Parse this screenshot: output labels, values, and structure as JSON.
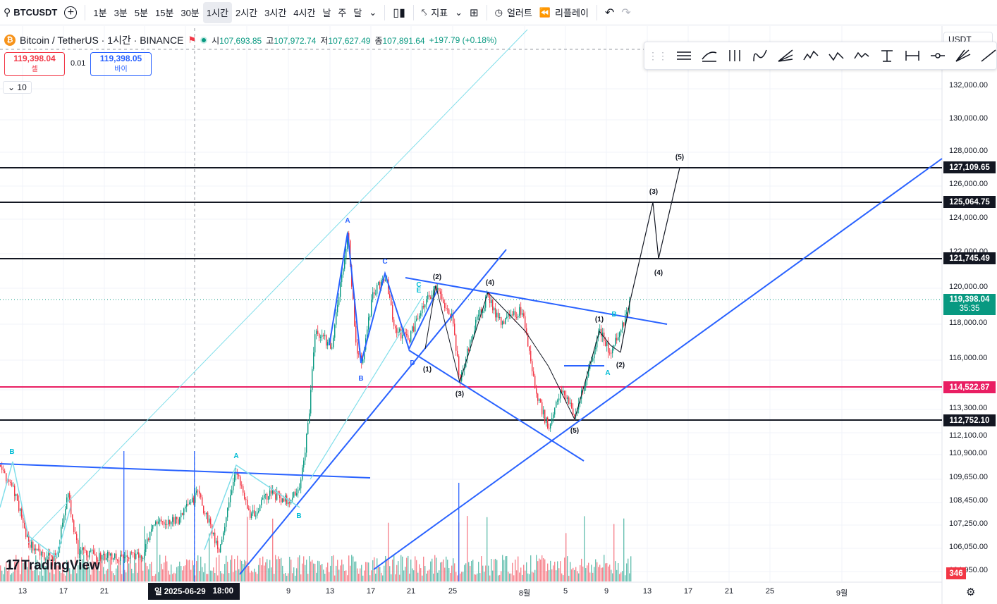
{
  "toolbar": {
    "symbol": "BTCUSDT",
    "intervals": [
      "1분",
      "3분",
      "5분",
      "15분",
      "30분",
      "1시간",
      "2시간",
      "3시간",
      "4시간",
      "날",
      "주",
      "달"
    ],
    "active_interval": "1시간",
    "indicators_label": "지표",
    "alert_label": "얼러트",
    "replay_label": "리플레이"
  },
  "legend": {
    "name": "Bitcoin / TetherUS · 1시간 · BINANCE",
    "open_label": "시",
    "open": "107,693.85",
    "high_label": "고",
    "high": "107,972.74",
    "low_label": "저",
    "low": "107,627.49",
    "close_label": "종",
    "close": "107,891.64",
    "change": "+197.79 (+0.18%)"
  },
  "trade": {
    "sell_price": "119,398.04",
    "sell_label": "셀",
    "buy_price": "119,398.05",
    "buy_label": "바이",
    "qty": "0.01"
  },
  "indicator_count": "10",
  "currency": "USDT",
  "price_axis": [
    "132,000.00",
    "130,000.00",
    "128,000.00",
    "126,000.00",
    "124,000.00",
    "122,000.00",
    "120,000.00",
    "118,000.00",
    "116,000.00",
    "113,300.00",
    "112,100.00",
    "110,900.00",
    "109,650.00",
    "108,450.00",
    "107,250.00",
    "106,050.00",
    "104,950.00"
  ],
  "price_labels": {
    "level1": "127,109.65",
    "level2": "125,064.75",
    "level3": "121,745.49",
    "current": "119,398.04",
    "countdown": "35:35",
    "pink": "114,522.87",
    "level4": "112,752.10",
    "volume": "346"
  },
  "date_axis": [
    "13",
    "17",
    "21",
    "25",
    "5",
    "9",
    "13",
    "17",
    "21",
    "25",
    "8월",
    "5",
    "9",
    "13",
    "17",
    "21",
    "25",
    "9월"
  ],
  "crosshair_date": "일 2025-06-29",
  "crosshair_time": "18:00",
  "logo_text": "TradingView",
  "wave_labels": {
    "A_top": "A",
    "B_low": "B",
    "C_top": "C",
    "D": "D",
    "E": "E",
    "C2": "C",
    "w1": "(1)",
    "w2": "(2)",
    "w3": "(3)",
    "w4": "(4)",
    "w5": "(5)",
    "p1": "(1)",
    "p2": "(2)",
    "pA": "A",
    "pB": "B",
    "f3": "(3)",
    "f4": "(4)",
    "f5": "(5)",
    "left_B": "B",
    "left_A": "A",
    "left_B2": "B"
  }
}
